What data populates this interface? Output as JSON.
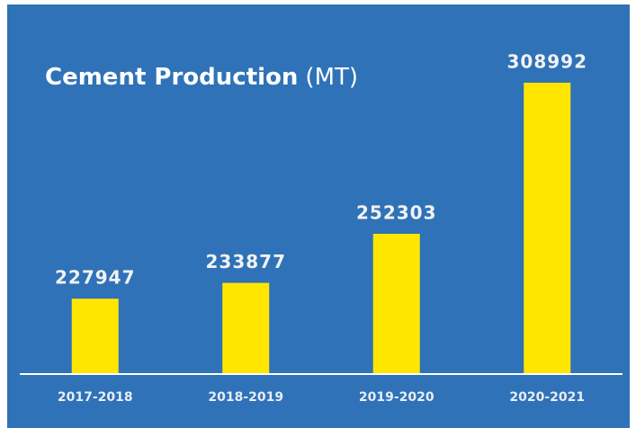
{
  "chart_data": {
    "type": "bar",
    "title": "Cement Production",
    "title_unit": "(MT)",
    "categories": [
      "2017-2018",
      "2018-2019",
      "2019-2020",
      "2020-2021"
    ],
    "values": [
      227947,
      233877,
      252303,
      308992
    ],
    "color": "#ffe600",
    "background": "#2f72b8",
    "ylim": [
      200000,
      310000
    ]
  }
}
